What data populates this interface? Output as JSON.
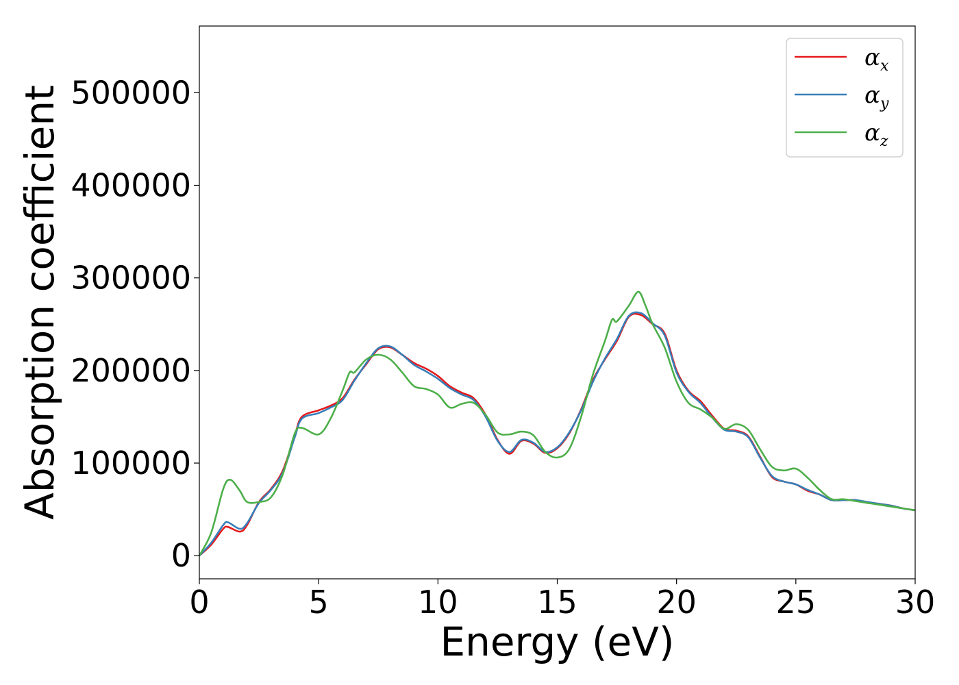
{
  "chart_data": {
    "type": "line",
    "xlabel": "Energy (eV)",
    "ylabel": "Absorption coefficient",
    "xlim": [
      0,
      30
    ],
    "ylim": [
      -25000,
      572000
    ],
    "xticks": [
      0,
      5,
      10,
      15,
      20,
      25,
      30
    ],
    "xtick_labels": [
      "0",
      "5",
      "10",
      "15",
      "20",
      "25",
      "30"
    ],
    "yticks": [
      0,
      100000,
      200000,
      300000,
      400000,
      500000
    ],
    "ytick_labels": [
      "0",
      "100000",
      "200000",
      "300000",
      "400000",
      "500000"
    ],
    "grid": false,
    "legend_position": "top-right",
    "series": [
      {
        "name": "αx",
        "symbol": "α",
        "subscript": "x",
        "color": "#e41a1c",
        "x": [
          0,
          0.5,
          1.0,
          1.2,
          1.7,
          2.0,
          2.5,
          3.0,
          3.5,
          4.0,
          4.3,
          5.0,
          5.5,
          6.0,
          6.5,
          7.0,
          7.5,
          8.0,
          8.5,
          9.0,
          9.5,
          10.0,
          10.5,
          11.0,
          11.5,
          12.0,
          12.5,
          13.0,
          13.5,
          14.0,
          14.5,
          15.0,
          15.5,
          16.0,
          16.5,
          17.0,
          17.5,
          18.0,
          18.5,
          19.0,
          19.5,
          20.0,
          20.5,
          21.0,
          21.5,
          22.0,
          22.5,
          23.0,
          23.5,
          24.0,
          24.5,
          25.0,
          25.5,
          26.0,
          26.5,
          27.0,
          27.5,
          28.0,
          28.5,
          29.0,
          29.5,
          30.0
        ],
        "y": [
          0,
          12000,
          29000,
          31000,
          26000,
          33000,
          58000,
          72000,
          92000,
          130000,
          150000,
          157000,
          162000,
          170000,
          190000,
          207000,
          223000,
          225000,
          217000,
          208000,
          202000,
          194000,
          183000,
          176000,
          170000,
          152000,
          125000,
          110000,
          124000,
          121000,
          111000,
          116000,
          132000,
          158000,
          190000,
          212000,
          232000,
          258000,
          260000,
          250000,
          240000,
          200000,
          178000,
          167000,
          151000,
          137000,
          135000,
          129000,
          107000,
          85000,
          80000,
          77000,
          70000,
          66000,
          60000,
          60000,
          60000,
          57000,
          56000,
          54000,
          51000,
          49000
        ]
      },
      {
        "name": "αy",
        "symbol": "α",
        "subscript": "y",
        "color": "#377eb8",
        "x": [
          0,
          0.5,
          1.0,
          1.2,
          1.7,
          2.0,
          2.5,
          3.0,
          3.5,
          4.0,
          4.3,
          5.0,
          5.5,
          6.0,
          6.5,
          7.0,
          7.5,
          8.0,
          8.5,
          9.0,
          9.5,
          10.0,
          10.5,
          11.0,
          11.5,
          12.0,
          12.5,
          13.0,
          13.5,
          14.0,
          14.5,
          15.0,
          15.5,
          16.0,
          16.5,
          17.0,
          17.5,
          18.0,
          18.5,
          19.0,
          19.5,
          20.0,
          20.5,
          21.0,
          21.5,
          22.0,
          22.5,
          23.0,
          23.5,
          24.0,
          24.5,
          25.0,
          25.5,
          26.0,
          26.5,
          27.0,
          27.5,
          28.0,
          28.5,
          29.0,
          29.5,
          30.0
        ],
        "y": [
          0,
          14000,
          33000,
          36000,
          29000,
          35000,
          57000,
          71000,
          90000,
          128000,
          148000,
          154000,
          160000,
          168000,
          189000,
          208000,
          224000,
          226000,
          217000,
          206000,
          199000,
          191000,
          181000,
          174000,
          168000,
          150000,
          124000,
          112000,
          125000,
          122000,
          112000,
          117000,
          133000,
          157000,
          188000,
          213000,
          234000,
          259000,
          262000,
          251000,
          238000,
          198000,
          177000,
          165000,
          149000,
          136000,
          134000,
          128000,
          106000,
          86000,
          80000,
          77000,
          71000,
          66000,
          60000,
          60000,
          60000,
          58000,
          56000,
          54000,
          51000,
          49000
        ]
      },
      {
        "name": "αz",
        "symbol": "α",
        "subscript": "z",
        "color": "#4daf4a",
        "x": [
          0,
          0.5,
          1.0,
          1.3,
          1.7,
          2.0,
          2.5,
          3.0,
          3.5,
          4.0,
          4.3,
          5.0,
          5.5,
          6.0,
          6.3,
          6.5,
          7.0,
          7.5,
          8.0,
          8.5,
          9.0,
          9.5,
          10.0,
          10.5,
          11.0,
          11.5,
          12.0,
          12.5,
          13.0,
          13.5,
          14.0,
          14.5,
          15.0,
          15.5,
          16.0,
          16.5,
          17.0,
          17.3,
          17.5,
          18.0,
          18.4,
          18.7,
          19.0,
          19.5,
          20.0,
          20.5,
          21.0,
          21.5,
          22.0,
          22.5,
          23.0,
          23.5,
          24.0,
          24.5,
          25.0,
          25.5,
          26.0,
          26.5,
          27.0,
          27.5,
          28.0,
          28.5,
          29.0,
          29.5,
          30.0
        ],
        "y": [
          0,
          25000,
          72000,
          82000,
          70000,
          58000,
          58000,
          63000,
          88000,
          132000,
          138000,
          131000,
          148000,
          178000,
          198000,
          198000,
          212000,
          217000,
          212000,
          198000,
          183000,
          180000,
          174000,
          160000,
          164000,
          165000,
          152000,
          133000,
          131000,
          134000,
          130000,
          112000,
          106000,
          115000,
          150000,
          196000,
          232000,
          255000,
          253000,
          270000,
          285000,
          270000,
          250000,
          225000,
          188000,
          165000,
          158000,
          149000,
          137000,
          142000,
          136000,
          115000,
          96000,
          92000,
          94000,
          84000,
          71000,
          61000,
          61000,
          59000,
          57000,
          55000,
          53000,
          51000,
          49000
        ]
      }
    ]
  }
}
